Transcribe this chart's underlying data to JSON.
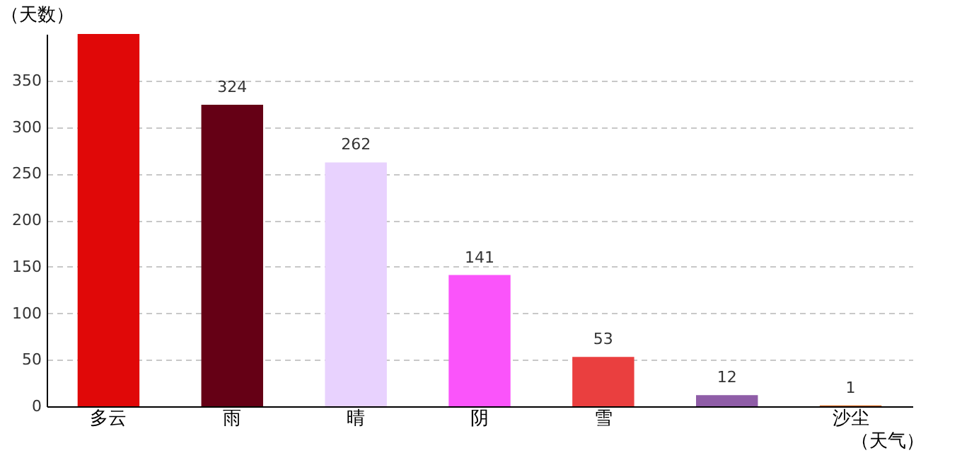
{
  "chart_data": {
    "type": "bar",
    "xlabel": "（天气）",
    "ylabel": "（天数）",
    "categories": [
      "多云",
      "雨",
      "晴",
      "阴",
      "雪",
      null,
      "沙尘"
    ],
    "values": [
      400,
      324,
      262,
      141,
      53,
      12,
      1
    ],
    "value_labels": [
      null,
      "324",
      "262",
      "141",
      "53",
      "12",
      "1"
    ],
    "colors": [
      "#e00808",
      "#650015",
      "#e8d2fe",
      "#fa54fa",
      "#ea3f3f",
      "#8f5da7",
      "#d2691e"
    ],
    "ylim": [
      0,
      400
    ],
    "yticks": [
      0,
      50,
      100,
      150,
      200,
      250,
      300,
      350
    ],
    "grid": "y"
  }
}
